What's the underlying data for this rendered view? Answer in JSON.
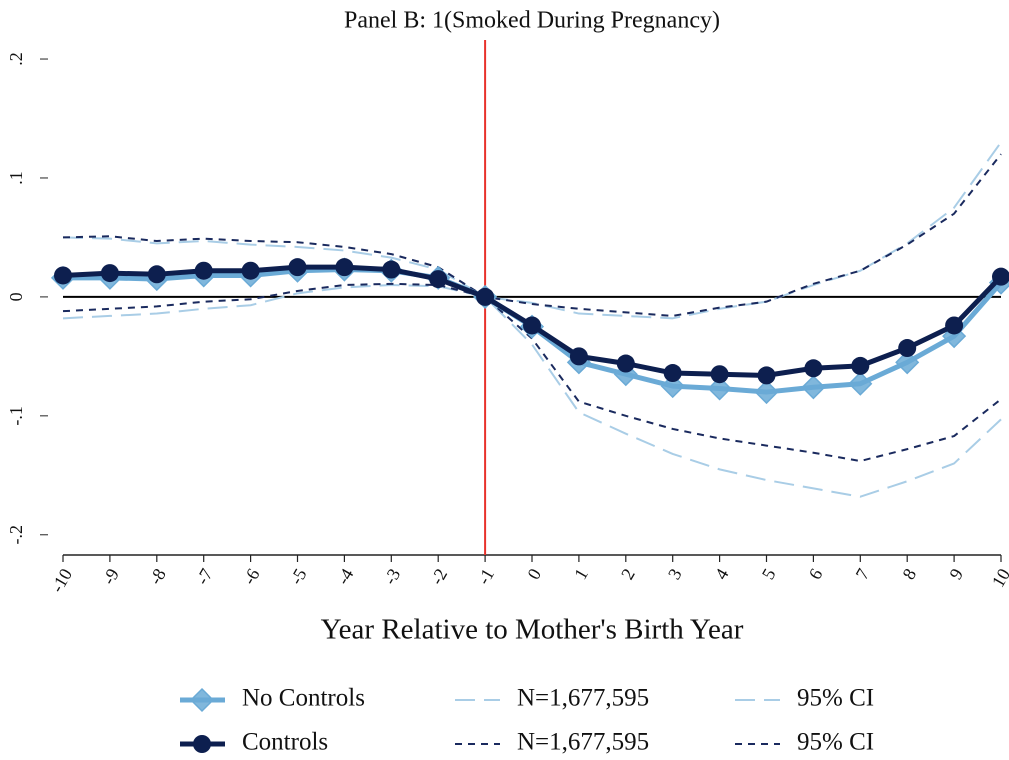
{
  "chart_data": {
    "type": "line",
    "title": "Panel B: 1(Smoked During Pregnancy)",
    "x_label": "Year Relative to Mother's Birth Year",
    "x": [
      -10,
      -9,
      -8,
      -7,
      -6,
      -5,
      -4,
      -3,
      -2,
      -1,
      0,
      1,
      2,
      3,
      4,
      5,
      6,
      7,
      8,
      9,
      10
    ],
    "xlim": [
      -10,
      10
    ],
    "xticks": [
      -10,
      -9,
      -8,
      -7,
      -6,
      -5,
      -4,
      -3,
      -2,
      -1,
      0,
      1,
      2,
      3,
      4,
      5,
      6,
      7,
      8,
      9,
      10
    ],
    "ylim": [
      -0.217,
      0.216
    ],
    "yticks": [
      {
        "value": -0.2,
        "label": "-.2"
      },
      {
        "value": -0.1,
        "label": "-.1"
      },
      0,
      {
        "value": 0.1,
        "label": ".1"
      },
      {
        "value": 0.2,
        "label": ".2"
      }
    ],
    "hline": {
      "value": 0,
      "color": "#000000"
    },
    "vline": {
      "value": -1,
      "color": "#e8312b"
    },
    "series": [
      {
        "name": "No Controls",
        "color": "#6aaad6",
        "style": "solid",
        "marker": "diamond",
        "values": [
          0.016,
          0.016,
          0.015,
          0.018,
          0.018,
          0.022,
          0.023,
          0.022,
          0.016,
          0,
          -0.025,
          -0.055,
          -0.065,
          -0.075,
          -0.077,
          -0.08,
          -0.076,
          -0.073,
          -0.055,
          -0.033,
          0.012
        ]
      },
      {
        "name": "Controls",
        "color": "#0d1f4f",
        "style": "solid",
        "marker": "circle",
        "values": [
          0.018,
          0.02,
          0.019,
          0.022,
          0.022,
          0.025,
          0.025,
          0.023,
          0.015,
          0,
          -0.024,
          -0.05,
          -0.056,
          -0.064,
          -0.065,
          -0.066,
          -0.06,
          -0.058,
          -0.043,
          -0.024,
          0.017
        ]
      },
      {
        "name": "N=1,677,595",
        "color": "#a9cde6",
        "style": "longdash",
        "values": [
          0.05,
          0.049,
          0.045,
          0.047,
          0.044,
          0.042,
          0.039,
          0.033,
          0.023,
          0,
          -0.005,
          -0.014,
          -0.016,
          -0.018,
          -0.01,
          -0.004,
          0.01,
          0.022,
          0.045,
          0.075,
          0.13
        ]
      },
      {
        "name": "N=1,677,595",
        "color": "#1a2a5e",
        "style": "dash",
        "values": [
          0.05,
          0.051,
          0.047,
          0.049,
          0.047,
          0.046,
          0.042,
          0.036,
          0.025,
          0,
          -0.006,
          -0.01,
          -0.013,
          -0.016,
          -0.009,
          -0.004,
          0.011,
          0.022,
          0.044,
          0.07,
          0.12
        ]
      },
      {
        "name": "95% CI",
        "color": "#a9cde6",
        "style": "longdash",
        "values": [
          -0.018,
          -0.016,
          -0.014,
          -0.01,
          -0.007,
          0.003,
          0.008,
          0.01,
          0.009,
          0,
          -0.04,
          -0.097,
          -0.115,
          -0.132,
          -0.145,
          -0.154,
          -0.161,
          -0.168,
          -0.155,
          -0.14,
          -0.103
        ]
      },
      {
        "name": "95% CI",
        "color": "#1a2a5e",
        "style": "dash",
        "values": [
          -0.012,
          -0.01,
          -0.008,
          -0.004,
          -0.002,
          0.005,
          0.01,
          0.011,
          0.01,
          0,
          -0.035,
          -0.088,
          -0.1,
          -0.111,
          -0.119,
          -0.125,
          -0.131,
          -0.138,
          -0.128,
          -0.117,
          -0.086
        ]
      }
    ]
  }
}
